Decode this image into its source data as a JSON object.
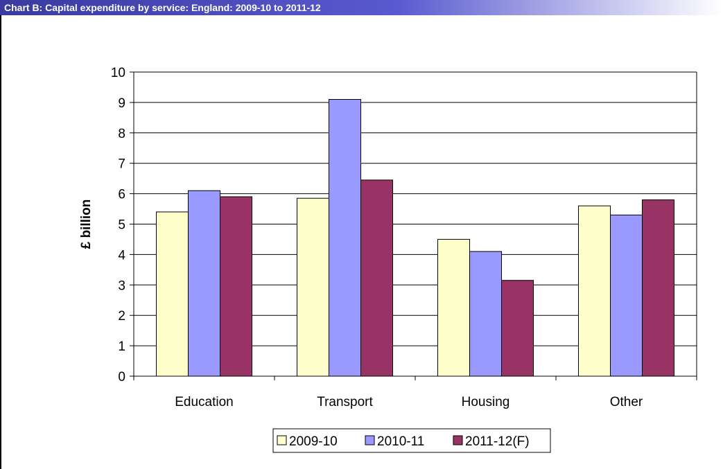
{
  "title": "Chart B: Capital expenditure by service: England: 2009-10 to 2011-12",
  "colors": {
    "title_bar": "#3a3aa0",
    "series_2009_10": "#ffffcc",
    "series_2010_11": "#9999ff",
    "series_2011_12": "#993366"
  },
  "chart_data": {
    "type": "bar",
    "title": "Chart B: Capital expenditure by service: England: 2009-10 to 2011-12",
    "xlabel": "",
    "ylabel": "£ billion",
    "ylim": [
      0,
      10
    ],
    "yticks": [
      "0",
      "1",
      "2",
      "3",
      "4",
      "5",
      "6",
      "7",
      "8",
      "9",
      "10"
    ],
    "grid": true,
    "legend_position": "bottom",
    "categories": [
      "Education",
      "Transport",
      "Housing",
      "Other"
    ],
    "series": [
      {
        "name": "2009-10",
        "color": "#ffffcc",
        "values": [
          5.4,
          5.85,
          4.5,
          5.6
        ]
      },
      {
        "name": "2010-11",
        "color": "#9999ff",
        "values": [
          6.1,
          9.1,
          4.1,
          5.3
        ]
      },
      {
        "name": "2011-12(F)",
        "color": "#993366",
        "values": [
          5.9,
          6.45,
          3.15,
          5.8
        ]
      }
    ]
  }
}
